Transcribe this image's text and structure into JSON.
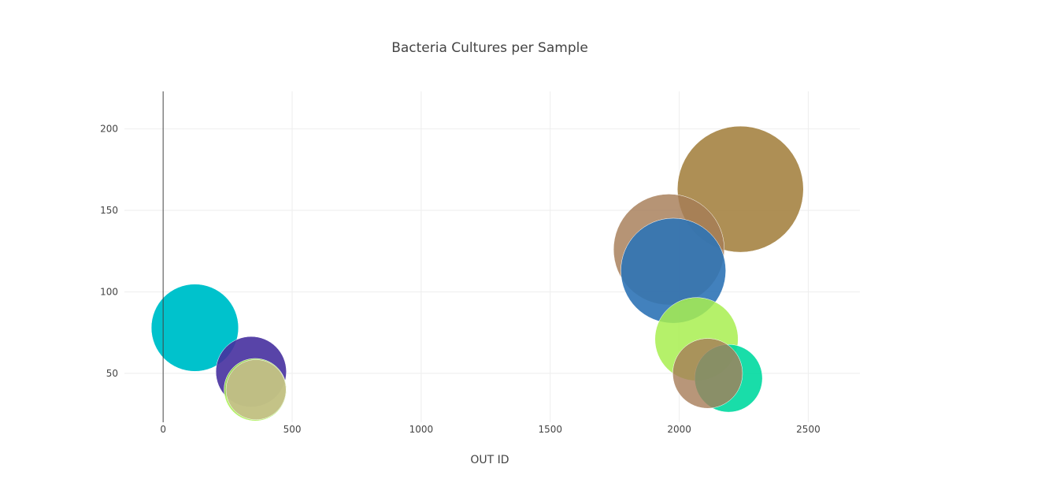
{
  "chart_data": {
    "type": "scatter",
    "mode": "bubble",
    "title": "Bacteria Cultures per Sample",
    "xlabel": "OUT ID",
    "ylabel": "",
    "xlim": [
      -150,
      2700
    ],
    "ylim": [
      20,
      223
    ],
    "x_ticks": [
      0,
      500,
      1000,
      1500,
      2000,
      2500
    ],
    "y_ticks": [
      50,
      100,
      150,
      200
    ],
    "grid": true,
    "legend": "none",
    "points": [
      {
        "x": 2237,
        "y": 163,
        "size": 163,
        "color": "#a07b37",
        "opacity": 0.85
      },
      {
        "x": 1960,
        "y": 126,
        "size": 126,
        "color": "#a67c57",
        "opacity": 0.82
      },
      {
        "x": 1977,
        "y": 113,
        "size": 113,
        "color": "#2e73b6",
        "opacity": 0.9
      },
      {
        "x": 2067,
        "y": 71,
        "size": 71,
        "color": "#a8ee50",
        "opacity": 0.85
      },
      {
        "x": 123,
        "y": 78,
        "size": 78,
        "color": "#00c2cc",
        "opacity": 1.0
      },
      {
        "x": 2191,
        "y": 47,
        "size": 47,
        "color": "#00d9a0",
        "opacity": 0.9
      },
      {
        "x": 2110,
        "y": 50,
        "size": 50,
        "color": "#a67c57",
        "opacity": 0.8
      },
      {
        "x": 341,
        "y": 51,
        "size": 51,
        "color": "#46309f",
        "opacity": 0.9
      },
      {
        "x": 357,
        "y": 40,
        "size": 40,
        "color": "#a8ee50",
        "opacity": 0.85
      },
      {
        "x": 360,
        "y": 40,
        "size": 37,
        "color": "#c8b88e",
        "opacity": 0.8
      }
    ]
  }
}
